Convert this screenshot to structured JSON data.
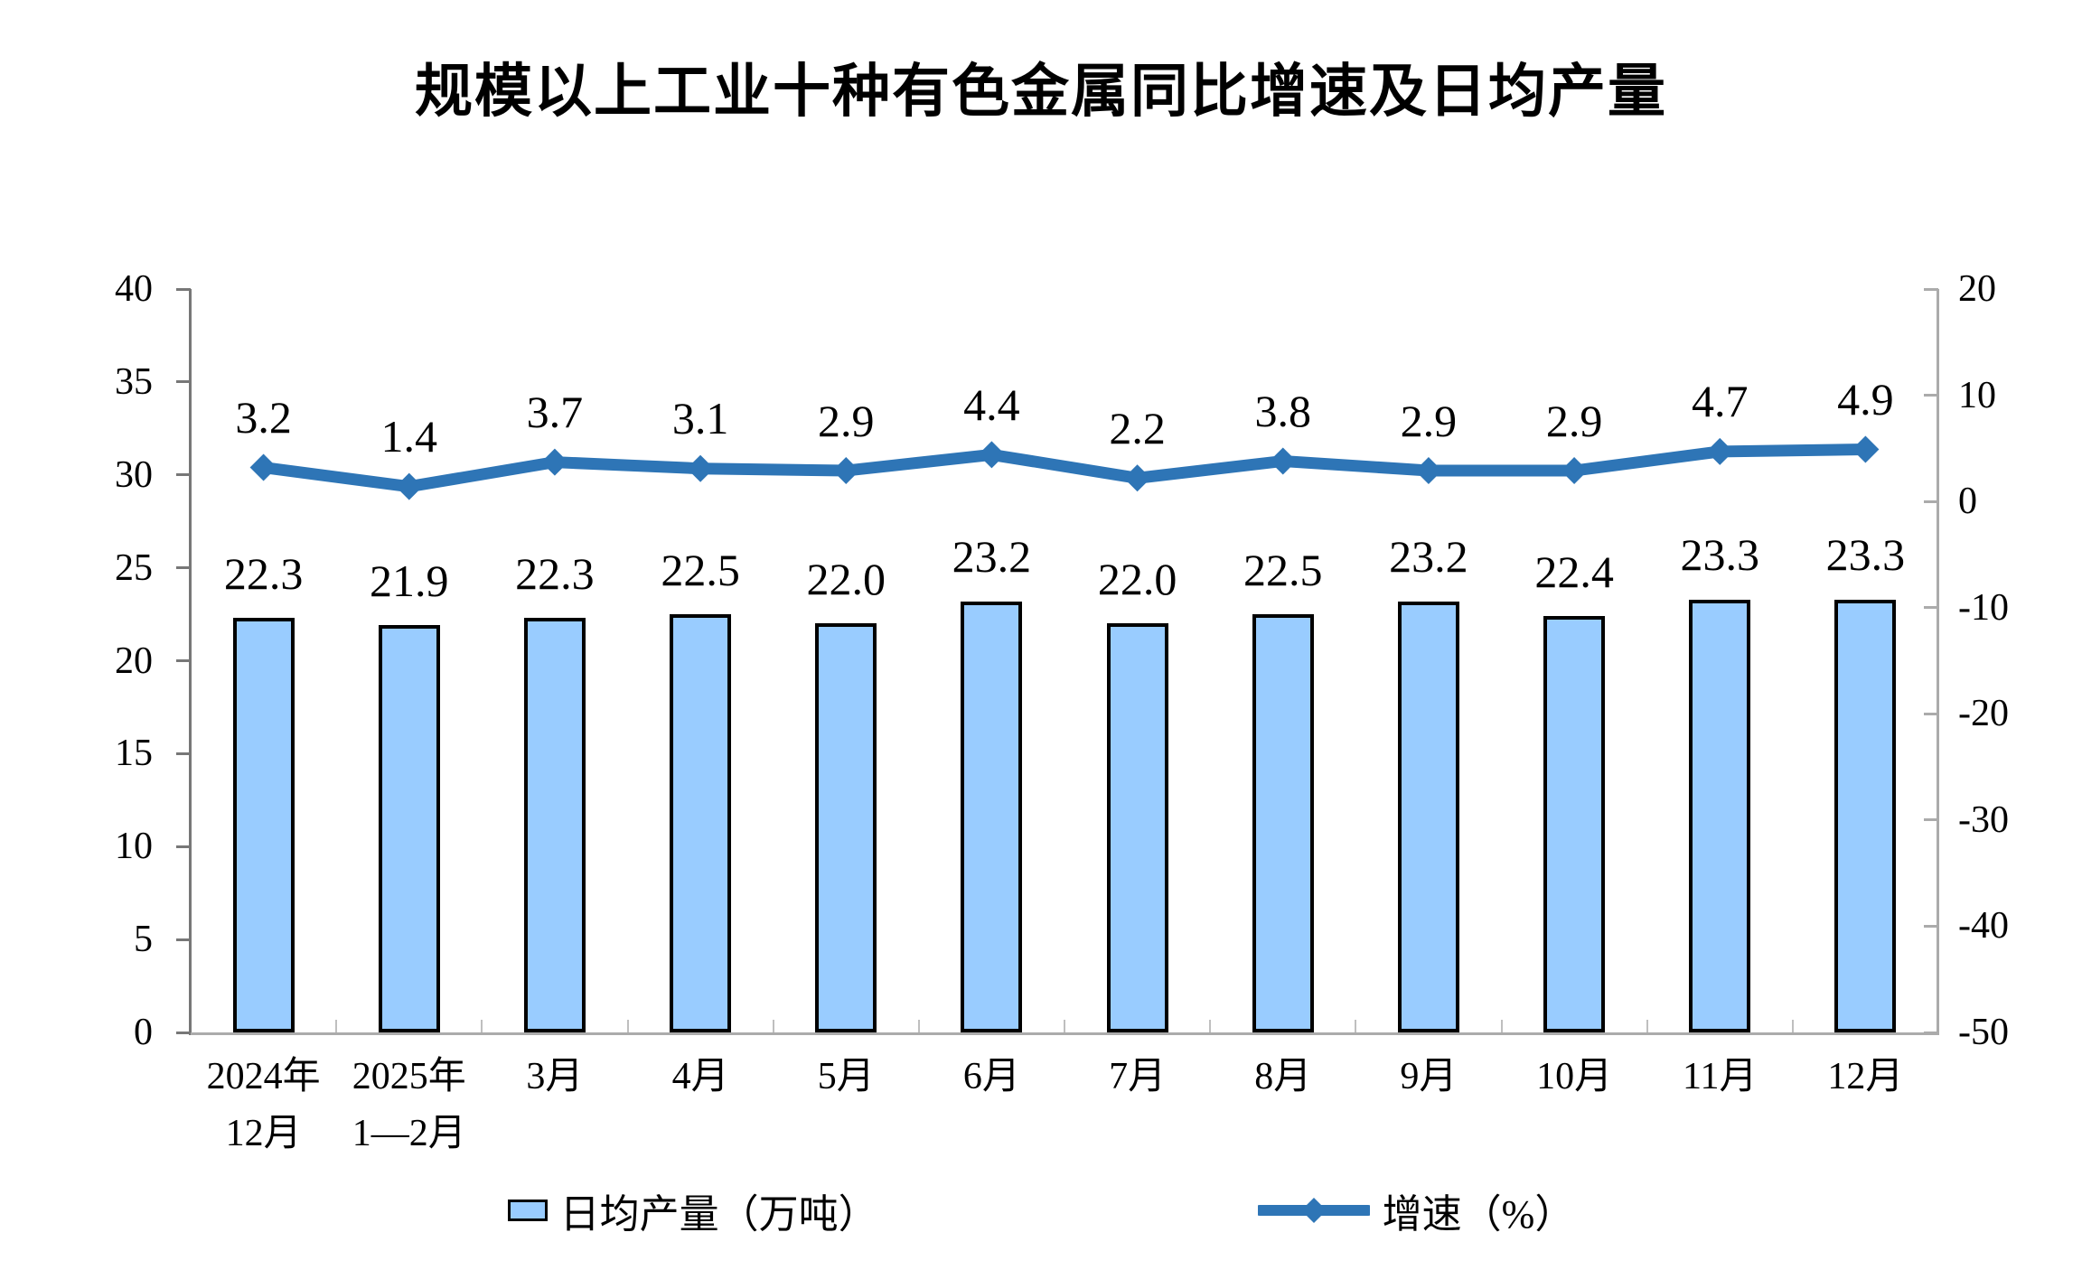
{
  "title": "规模以上工业十种有色金属同比增速及日均产量",
  "colors": {
    "bar_fill": "#99CCFF",
    "bar_border": "#000000",
    "line": "#2E75B6",
    "left_axis_line": "#777777",
    "right_axis_line": "#ABABAB",
    "category_tick": "#BFBFBF",
    "text": "#000000",
    "background": "#FFFFFF"
  },
  "chart_data": {
    "type": "combo bar+line",
    "title": "规模以上工业十种有色金属同比增速及日均产量",
    "categories": [
      [
        "2024年",
        "12月"
      ],
      [
        "2025年",
        "1—2月"
      ],
      [
        "3月"
      ],
      [
        "4月"
      ],
      [
        "5月"
      ],
      [
        "6月"
      ],
      [
        "7月"
      ],
      [
        "8月"
      ],
      [
        "9月"
      ],
      [
        "10月"
      ],
      [
        "11月"
      ],
      [
        "12月"
      ]
    ],
    "series": [
      {
        "name": "日均产量（万吨）",
        "type": "bar",
        "axis": "left",
        "values": [
          22.3,
          21.9,
          22.3,
          22.5,
          22.0,
          23.2,
          22.0,
          22.5,
          23.2,
          22.4,
          23.3,
          23.3
        ],
        "labels": [
          "22.3",
          "21.9",
          "22.3",
          "22.5",
          "22.0",
          "23.2",
          "22.0",
          "22.5",
          "23.2",
          "22.4",
          "23.3",
          "23.3"
        ]
      },
      {
        "name": "增速（%）",
        "type": "line",
        "axis": "right",
        "values": [
          3.2,
          1.4,
          3.7,
          3.1,
          2.9,
          4.4,
          2.2,
          3.8,
          2.9,
          2.9,
          4.7,
          4.9
        ],
        "labels": [
          "3.2",
          "1.4",
          "3.7",
          "3.1",
          "2.9",
          "4.4",
          "2.2",
          "3.8",
          "2.9",
          "2.9",
          "4.7",
          "4.9"
        ]
      }
    ],
    "left_axis": {
      "min": 0,
      "max": 40,
      "step": 5,
      "tick_labels": [
        "40",
        "35",
        "30",
        "25",
        "20",
        "15",
        "10",
        "5",
        "0"
      ]
    },
    "right_axis": {
      "min": -50,
      "max": 20,
      "step": 10,
      "tick_labels": [
        "20",
        "10",
        "0",
        "-10",
        "-20",
        "-30",
        "-40",
        "-50"
      ]
    },
    "grid": "off",
    "legend_position": "bottom"
  }
}
